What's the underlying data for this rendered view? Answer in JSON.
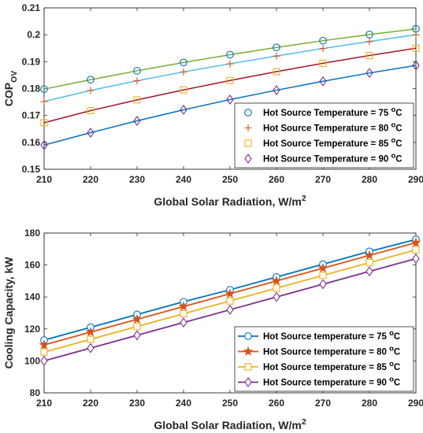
{
  "chart_data": [
    {
      "type": "line",
      "x": [
        210,
        220,
        230,
        240,
        250,
        260,
        270,
        280,
        290
      ],
      "xlim": [
        210,
        290
      ],
      "ylim": [
        0.15,
        0.21
      ],
      "xticks": [
        210,
        220,
        230,
        240,
        250,
        260,
        270,
        280,
        290
      ],
      "yticks": [
        0.15,
        0.16,
        0.17,
        0.18,
        0.19,
        0.2,
        0.21
      ],
      "ytick_labels": [
        "0.15",
        "0.16",
        "0.17",
        "0.18",
        "0.19",
        "0.2",
        "0.21"
      ],
      "xlabel": "Global Solar Radiation, W/m",
      "xlabel_sup": "2",
      "ylabel": "COP",
      "ylabel_sub": "OV",
      "grid": false,
      "legend_position": "bottom-right",
      "series": [
        {
          "name": "Hot Source Temperature = 75",
          "unit": "C",
          "unit_sup": "o",
          "color": "#77AC30",
          "marker": "circle",
          "marker_color": "#0072BD",
          "values": [
            0.1798,
            0.1833,
            0.1866,
            0.1897,
            0.1926,
            0.1953,
            0.1978,
            0.2001,
            0.2022
          ]
        },
        {
          "name": "Hot Source Temperature = 80",
          "unit": "C",
          "unit_sup": "o",
          "color": "#4DBEEE",
          "marker": "plus",
          "marker_color": "#D95319",
          "values": [
            0.1752,
            0.1793,
            0.1829,
            0.1862,
            0.1892,
            0.1921,
            0.1949,
            0.1975,
            0.2
          ]
        },
        {
          "name": "Hot Source Temperature = 85",
          "unit": "C",
          "unit_sup": "o",
          "color": "#A2142F",
          "marker": "square",
          "marker_color": "#EDB120",
          "values": [
            0.1673,
            0.1718,
            0.1758,
            0.1795,
            0.183,
            0.1863,
            0.1894,
            0.1923,
            0.195
          ]
        },
        {
          "name": "Hot Source Temperature = 90",
          "unit": "C",
          "unit_sup": "o",
          "color": "#0072BD",
          "marker": "diamond",
          "marker_color": "#7E2F8E",
          "values": [
            0.159,
            0.1636,
            0.168,
            0.1721,
            0.1759,
            0.1794,
            0.1827,
            0.1858,
            0.1886
          ]
        }
      ]
    },
    {
      "type": "line",
      "x": [
        210,
        220,
        230,
        240,
        250,
        260,
        270,
        280,
        290
      ],
      "xlim": [
        210,
        290
      ],
      "ylim": [
        80,
        180
      ],
      "xticks": [
        210,
        220,
        230,
        240,
        250,
        260,
        270,
        280,
        290
      ],
      "yticks": [
        80,
        100,
        120,
        140,
        160,
        180
      ],
      "ytick_labels": [
        "80",
        "100",
        "120",
        "140",
        "160",
        "180"
      ],
      "xlabel": "Global Solar Radiation, W/m",
      "xlabel_sup": "2",
      "ylabel": "Cooling Capacity, kW",
      "grid": false,
      "legend_position": "bottom-right",
      "series": [
        {
          "name": "Hot Source temperature = 75",
          "unit": "C",
          "unit_sup": "o",
          "color": "#0072BD",
          "marker": "circle",
          "marker_color": "#0072BD",
          "values": [
            113,
            121,
            129,
            137,
            144.5,
            152.5,
            160.5,
            168.5,
            176
          ]
        },
        {
          "name": "Hot Source temperature = 80",
          "unit": "C",
          "unit_sup": "o",
          "color": "#D95319",
          "marker": "star",
          "marker_color": "#D95319",
          "values": [
            110,
            118,
            126,
            134,
            142,
            150,
            158,
            166,
            174
          ]
        },
        {
          "name": "Hot Source temperature = 85",
          "unit": "C",
          "unit_sup": "o",
          "color": "#EDB120",
          "marker": "square",
          "marker_color": "#EDB120",
          "values": [
            105.5,
            113.5,
            121.5,
            129.5,
            137.5,
            145.5,
            153.5,
            161.5,
            169.5
          ]
        },
        {
          "name": "Hot Source temperature = 90",
          "unit": "C",
          "unit_sup": "o",
          "color": "#7E2F8E",
          "marker": "diamond",
          "marker_color": "#7E2F8E",
          "values": [
            100,
            108,
            116,
            124,
            132,
            140,
            148,
            156,
            164
          ]
        }
      ]
    }
  ]
}
